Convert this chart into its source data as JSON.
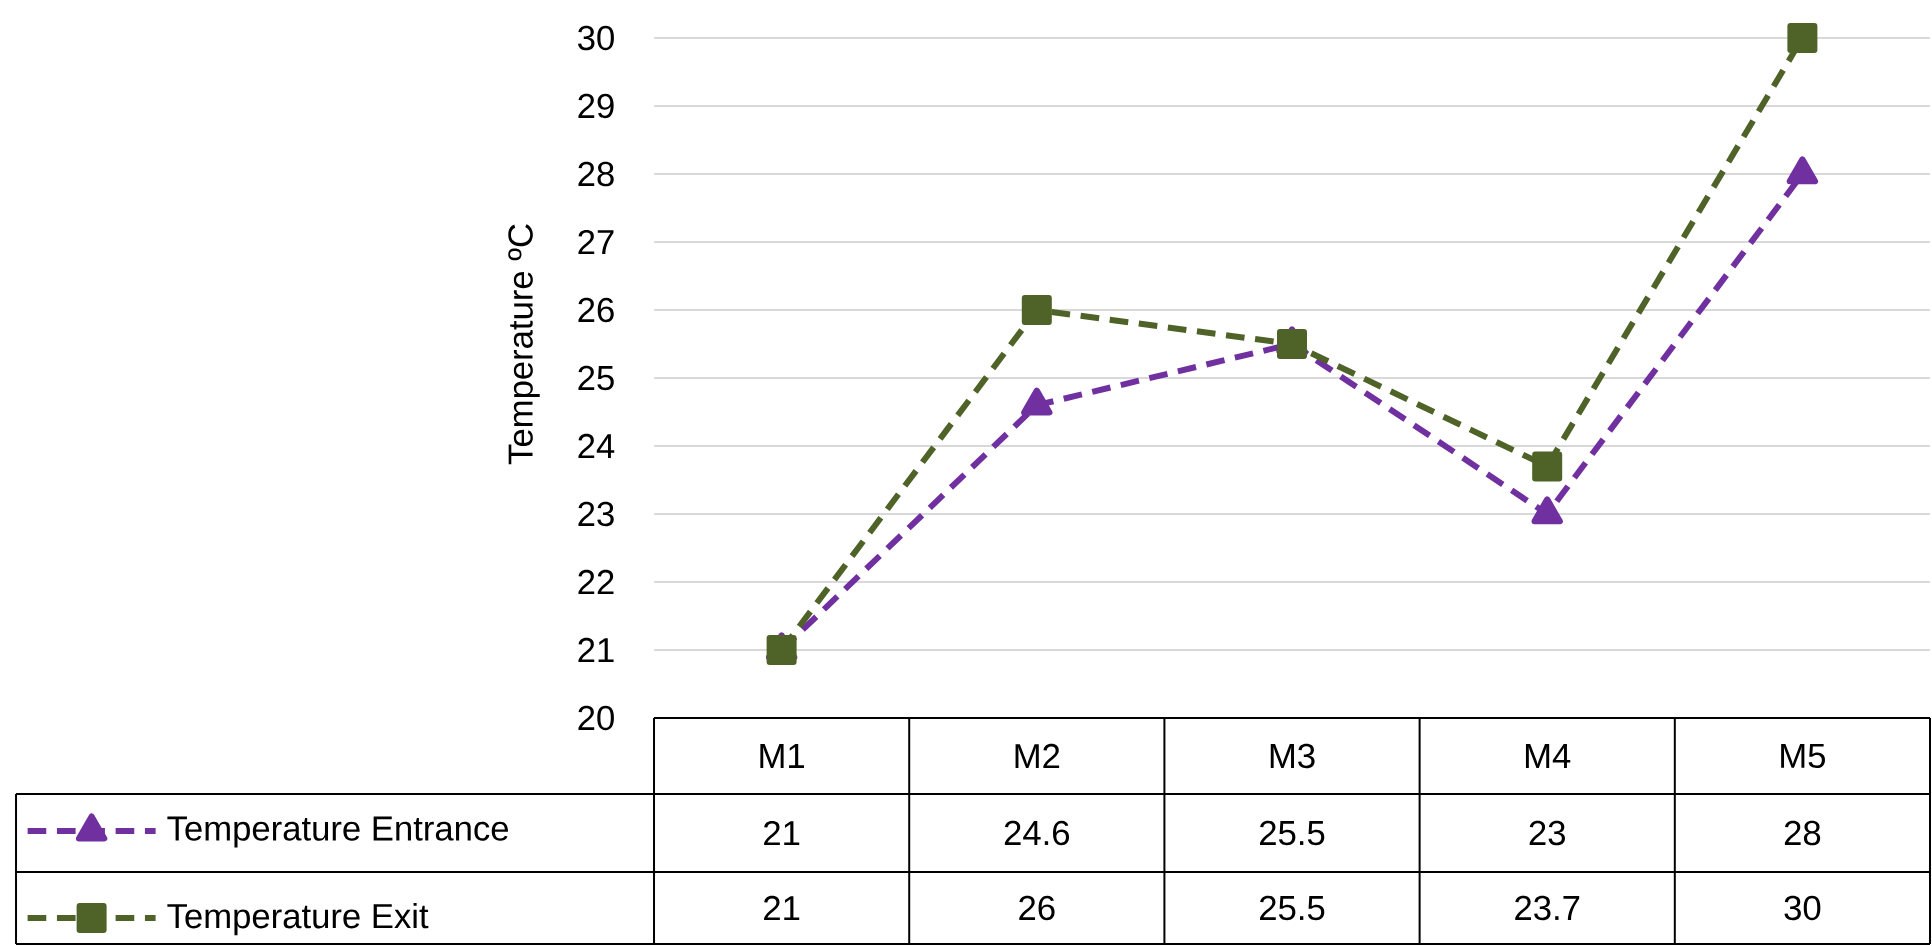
{
  "chart_data": {
    "type": "line",
    "ylabel": "Temperature ºC",
    "categories": [
      "M1",
      "M2",
      "M3",
      "M4",
      "M5"
    ],
    "series": [
      {
        "name": "Temperature Entrance",
        "color": "#7030a0",
        "marker": "triangle",
        "values": [
          21,
          24.6,
          25.5,
          23,
          28
        ]
      },
      {
        "name": "Temperature Exit",
        "color": "#4f6228",
        "marker": "square",
        "values": [
          21,
          26,
          25.5,
          23.7,
          30
        ]
      }
    ],
    "ylim": [
      20,
      30
    ],
    "yticks": [
      20,
      21,
      22,
      23,
      24,
      25,
      26,
      27,
      28,
      29,
      30
    ],
    "grid": "y",
    "line_style": "dashed",
    "legend": "bottom",
    "data_labels": true
  }
}
